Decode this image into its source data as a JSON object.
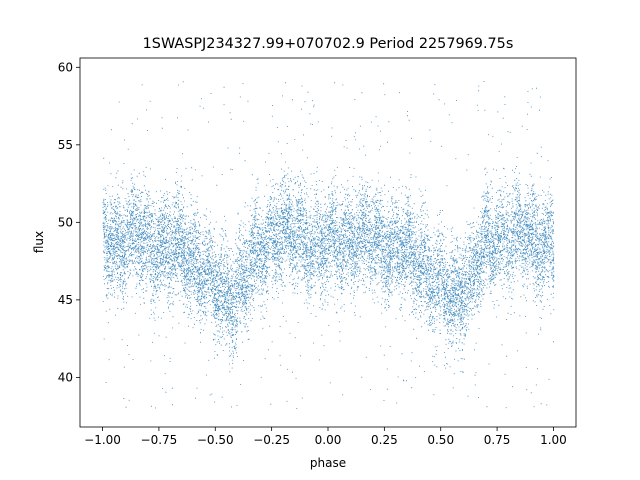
{
  "chart_data": {
    "type": "scatter",
    "title": "1SWASPJ234327.99+070702.9 Period 2257969.75s",
    "xlabel": "phase",
    "ylabel": "flux",
    "xlim": [
      -1.1,
      1.1
    ],
    "ylim": [
      36.8,
      60.6
    ],
    "xticks": [
      -1.0,
      -0.75,
      -0.5,
      -0.25,
      0.0,
      0.25,
      0.5,
      0.75,
      1.0
    ],
    "xtick_labels": [
      "−1.00",
      "−0.75",
      "−0.50",
      "−0.25",
      "0.00",
      "0.25",
      "0.50",
      "0.75",
      "1.00"
    ],
    "yticks": [
      40,
      45,
      50,
      55,
      60
    ],
    "ytick_labels": [
      "40",
      "45",
      "50",
      "55",
      "60"
    ],
    "grid": false,
    "series": [
      {
        "color": "#1f77b4",
        "x_range": [
          -1.0,
          1.0
        ],
        "flux_profile": {
          "phase": [
            0.0,
            0.05,
            0.1,
            0.15,
            0.2,
            0.25,
            0.3,
            0.35,
            0.4,
            0.45,
            0.5,
            0.55,
            0.6,
            0.65,
            0.7,
            0.75,
            0.8,
            0.85,
            0.9,
            0.95,
            1.0
          ],
          "mean_flux": [
            48.6,
            48.8,
            49.0,
            48.9,
            48.7,
            48.6,
            48.4,
            48.2,
            47.6,
            46.8,
            45.6,
            45.0,
            45.8,
            46.9,
            48.3,
            49.2,
            49.3,
            49.1,
            48.9,
            48.7,
            48.6
          ]
        },
        "scatter_sd": 1.6,
        "outlier_range": [
          38.0,
          59.2
        ]
      }
    ]
  }
}
